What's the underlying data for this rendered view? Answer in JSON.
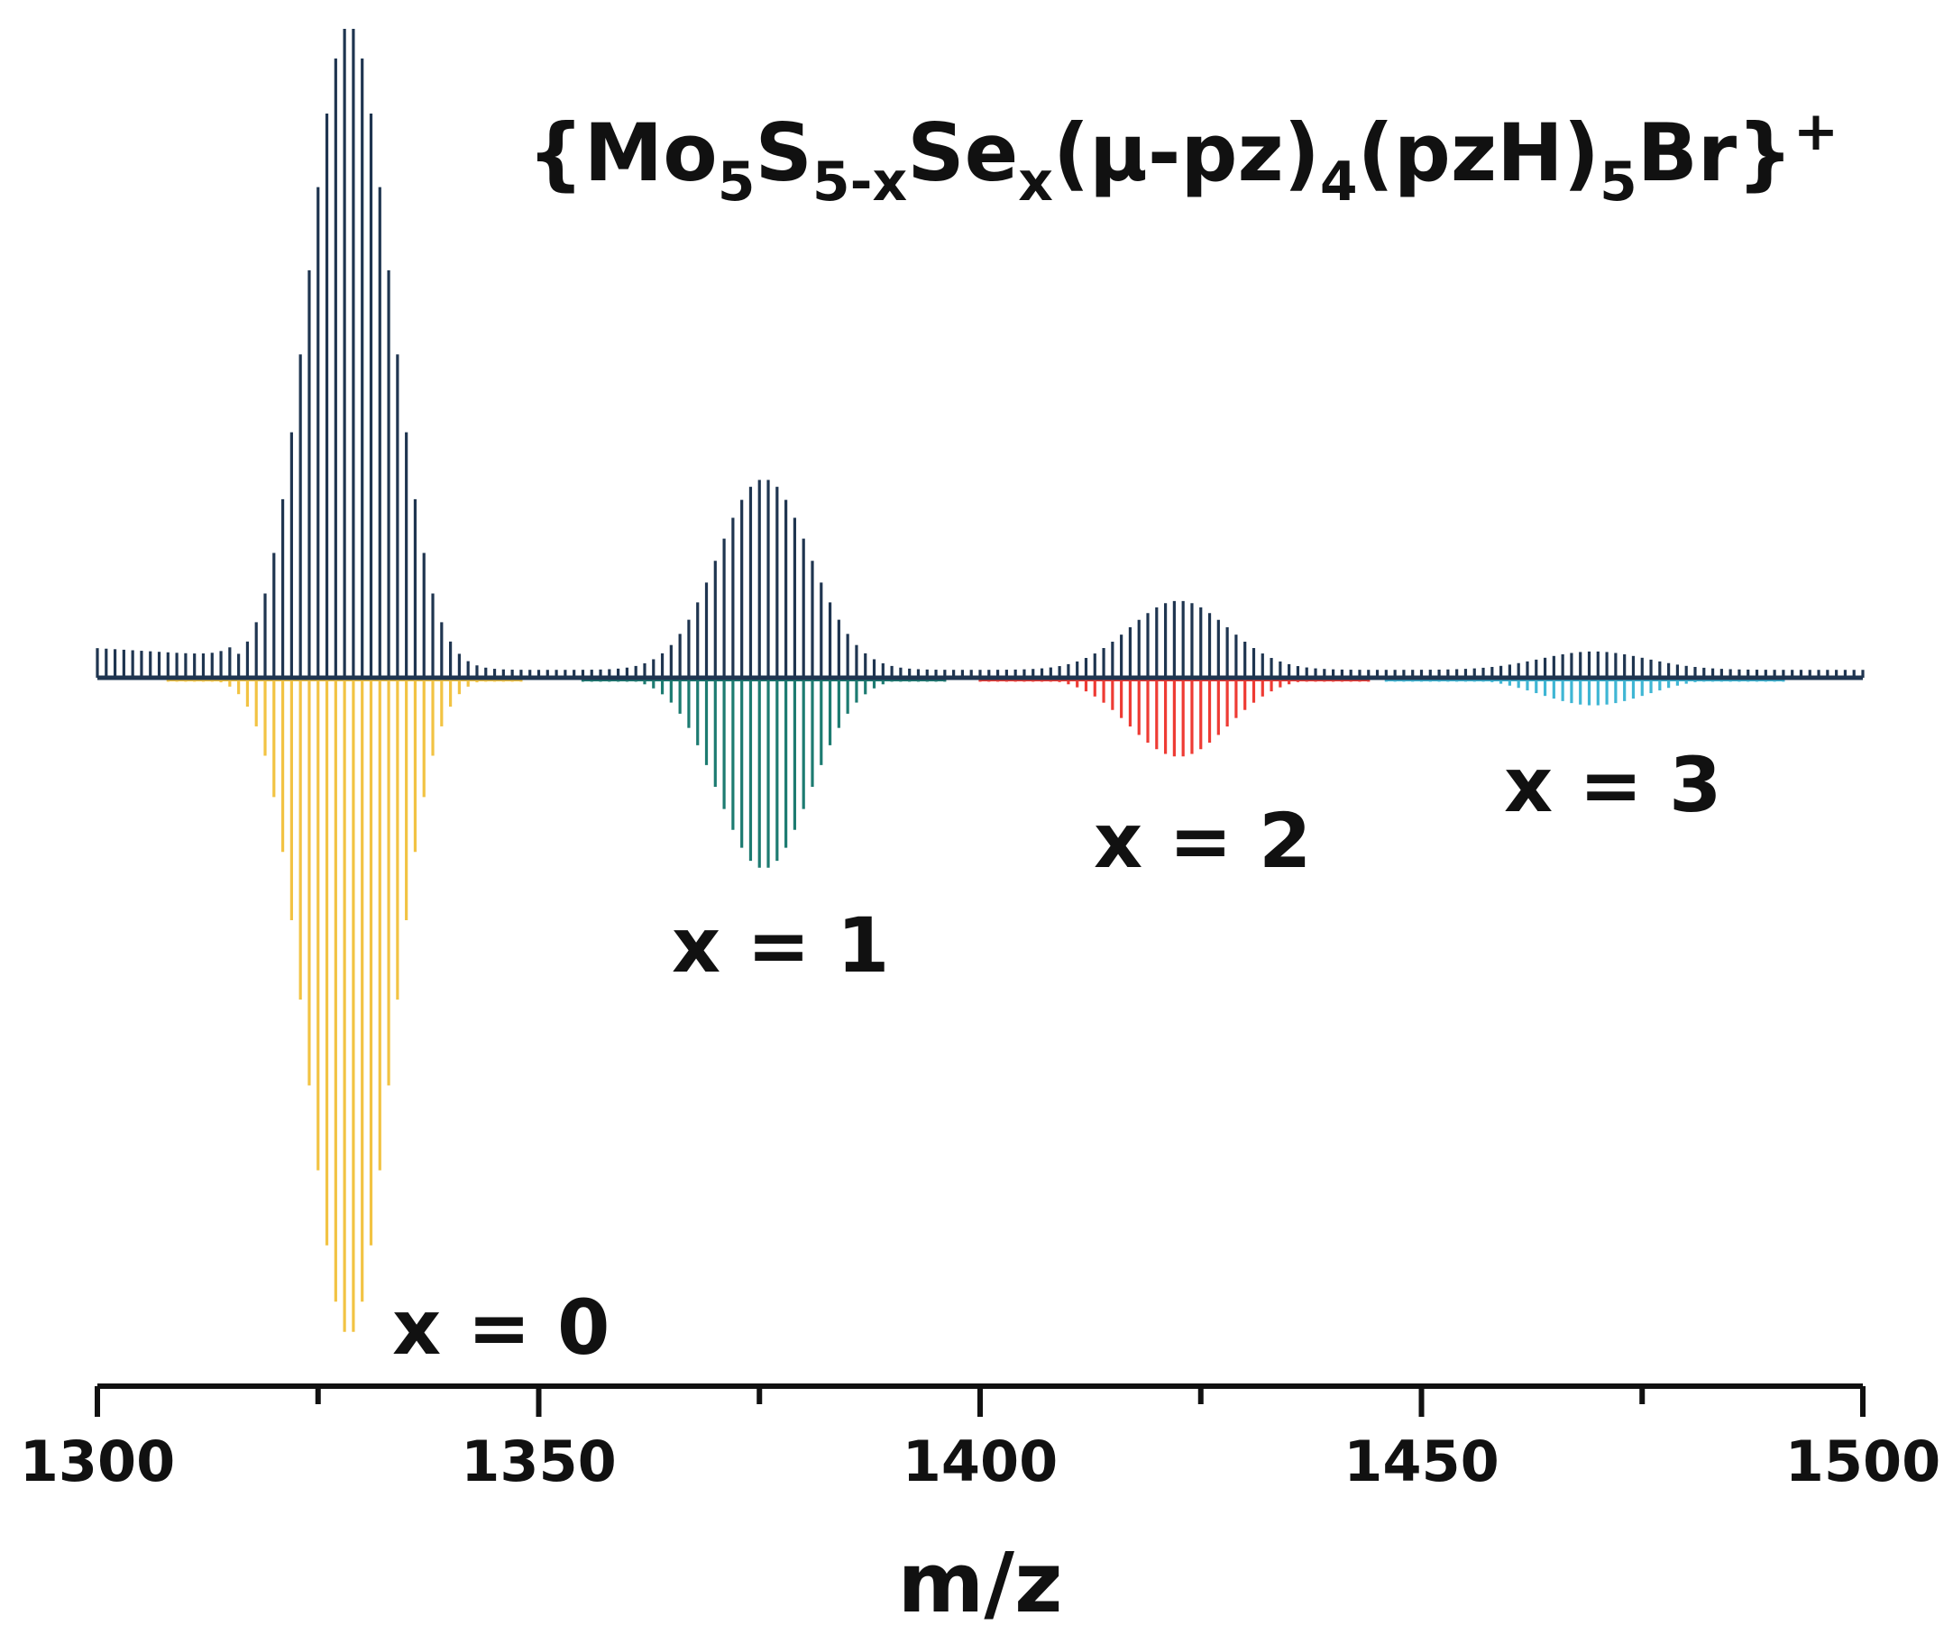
{
  "chart_data": {
    "type": "bar",
    "title": {
      "open": "{Mo",
      "sub1": "5",
      "s": "S",
      "sub2": "5-x",
      "se": "Se",
      "sub3": "x",
      "mid": "(μ-pz)",
      "sub4": "4",
      "mid2": "(pzH)",
      "sub5": "5",
      "close": "Br}",
      "sup": "+"
    },
    "xlabel": "m/z",
    "ylabel": "",
    "xlim": [
      1300,
      1500
    ],
    "xticks": [
      1300,
      1350,
      1400,
      1450,
      1500
    ],
    "xtick_labels": [
      "1300",
      "1350",
      "1400",
      "1450",
      "1500"
    ],
    "minor_step": 25,
    "ylim": [
      -1.0,
      1.0
    ],
    "yaxis_visible": false,
    "grid": false,
    "line_spacing": 1,
    "experimental": {
      "color": "#1f3550",
      "baseline_range": [
        1300,
        1500
      ],
      "peaks": [
        {
          "center": 1328.5,
          "sigma": 4.6,
          "amplitude": 0.98
        },
        {
          "center": 1375.5,
          "sigma": 5.2,
          "amplitude": 0.29
        },
        {
          "center": 1422.5,
          "sigma": 5.6,
          "amplitude": 0.105
        },
        {
          "center": 1469.5,
          "sigma": 6.0,
          "amplitude": 0.028
        }
      ]
    },
    "series": [
      {
        "name": "x = 0",
        "color": "#f2c343",
        "center": 1328.5,
        "sigma": 4.6,
        "amplitude": 1.0,
        "range": [
          1308,
          1348
        ]
      },
      {
        "name": "x = 1",
        "color": "#1d7b71",
        "center": 1375.5,
        "sigma": 5.2,
        "amplitude": 0.29,
        "range": [
          1355,
          1396
        ]
      },
      {
        "name": "x = 2",
        "color": "#ee3b34",
        "center": 1422.5,
        "sigma": 5.6,
        "amplitude": 0.12,
        "range": [
          1400,
          1444
        ]
      },
      {
        "name": "x = 3",
        "color": "#3fb6d4",
        "center": 1469.5,
        "sigma": 6.0,
        "amplitude": 0.042,
        "range": [
          1446,
          1491
        ]
      }
    ]
  }
}
